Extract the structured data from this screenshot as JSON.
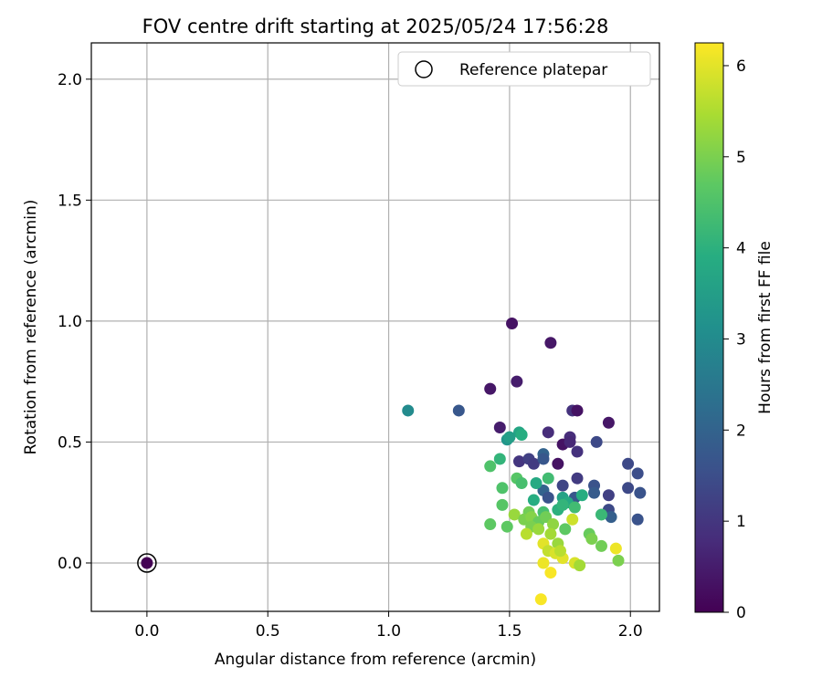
{
  "chart_data": {
    "type": "scatter",
    "title": "FOV centre drift starting at 2025/05/24 17:56:28",
    "xlabel": "Angular distance from reference (arcmin)",
    "ylabel": "Rotation from reference (arcmin)",
    "xlim": [
      -0.23,
      2.12
    ],
    "ylim": [
      -0.2,
      2.15
    ],
    "xticks": [
      0.0,
      0.5,
      1.0,
      1.5,
      2.0
    ],
    "xtick_labels": [
      "0.0",
      "0.5",
      "1.0",
      "1.5",
      "2.0"
    ],
    "yticks": [
      0.0,
      0.5,
      1.0,
      1.5,
      2.0
    ],
    "ytick_labels": [
      "0.0",
      "0.5",
      "1.0",
      "1.5",
      "2.0"
    ],
    "grid": true,
    "legend": {
      "placement": "upper right",
      "entries": [
        "Reference platepar"
      ]
    },
    "colorbar": {
      "label": "Hours from first FF file",
      "colormap": "viridis",
      "range": [
        0,
        6.25
      ],
      "ticks": [
        0,
        1,
        2,
        3,
        4,
        5,
        6
      ],
      "tick_labels": [
        "0",
        "1",
        "2",
        "3",
        "4",
        "5",
        "6"
      ]
    },
    "reference_point": {
      "x": 0.0,
      "y": 0.0,
      "c": 0.0
    },
    "points": [
      {
        "x": 1.51,
        "y": 0.99,
        "c": 0.3
      },
      {
        "x": 1.67,
        "y": 0.91,
        "c": 0.4
      },
      {
        "x": 1.53,
        "y": 0.75,
        "c": 0.5
      },
      {
        "x": 1.42,
        "y": 0.72,
        "c": 0.4
      },
      {
        "x": 1.76,
        "y": 0.63,
        "c": 0.9
      },
      {
        "x": 1.78,
        "y": 0.63,
        "c": 0.3
      },
      {
        "x": 1.91,
        "y": 0.58,
        "c": 0.4
      },
      {
        "x": 1.46,
        "y": 0.56,
        "c": 0.5
      },
      {
        "x": 1.66,
        "y": 0.54,
        "c": 0.8
      },
      {
        "x": 1.75,
        "y": 0.52,
        "c": 0.8
      },
      {
        "x": 1.72,
        "y": 0.49,
        "c": 0.3
      },
      {
        "x": 1.75,
        "y": 0.5,
        "c": 0.7
      },
      {
        "x": 1.86,
        "y": 0.5,
        "c": 1.4
      },
      {
        "x": 1.78,
        "y": 0.46,
        "c": 0.9
      },
      {
        "x": 1.54,
        "y": 0.42,
        "c": 1.0
      },
      {
        "x": 1.58,
        "y": 0.43,
        "c": 1.2
      },
      {
        "x": 1.6,
        "y": 0.41,
        "c": 1.1
      },
      {
        "x": 1.7,
        "y": 0.41,
        "c": 0.3
      },
      {
        "x": 1.64,
        "y": 0.45,
        "c": 2.0
      },
      {
        "x": 1.64,
        "y": 0.43,
        "c": 1.7
      },
      {
        "x": 1.99,
        "y": 0.41,
        "c": 1.4
      },
      {
        "x": 2.03,
        "y": 0.37,
        "c": 1.5
      },
      {
        "x": 1.78,
        "y": 0.35,
        "c": 1.1
      },
      {
        "x": 1.72,
        "y": 0.32,
        "c": 1.3
      },
      {
        "x": 1.85,
        "y": 0.32,
        "c": 1.6
      },
      {
        "x": 1.99,
        "y": 0.31,
        "c": 1.4
      },
      {
        "x": 2.04,
        "y": 0.29,
        "c": 1.6
      },
      {
        "x": 1.85,
        "y": 0.29,
        "c": 1.8
      },
      {
        "x": 1.91,
        "y": 0.28,
        "c": 1.2
      },
      {
        "x": 1.77,
        "y": 0.27,
        "c": 1.7
      },
      {
        "x": 1.64,
        "y": 0.3,
        "c": 2.0
      },
      {
        "x": 1.66,
        "y": 0.27,
        "c": 1.6
      },
      {
        "x": 1.91,
        "y": 0.22,
        "c": 1.4
      },
      {
        "x": 1.92,
        "y": 0.19,
        "c": 1.9
      },
      {
        "x": 2.03,
        "y": 0.18,
        "c": 1.6
      },
      {
        "x": 1.08,
        "y": 0.63,
        "c": 3.0
      },
      {
        "x": 1.29,
        "y": 0.63,
        "c": 1.7
      },
      {
        "x": 1.54,
        "y": 0.54,
        "c": 3.7
      },
      {
        "x": 1.49,
        "y": 0.51,
        "c": 3.3
      },
      {
        "x": 1.55,
        "y": 0.53,
        "c": 3.9
      },
      {
        "x": 1.5,
        "y": 0.52,
        "c": 3.5
      },
      {
        "x": 1.46,
        "y": 0.43,
        "c": 4.1
      },
      {
        "x": 1.42,
        "y": 0.4,
        "c": 4.5
      },
      {
        "x": 1.53,
        "y": 0.35,
        "c": 4.6
      },
      {
        "x": 1.55,
        "y": 0.33,
        "c": 4.4
      },
      {
        "x": 1.66,
        "y": 0.35,
        "c": 4.3
      },
      {
        "x": 1.61,
        "y": 0.33,
        "c": 3.8
      },
      {
        "x": 1.47,
        "y": 0.31,
        "c": 4.5
      },
      {
        "x": 1.72,
        "y": 0.27,
        "c": 3.6
      },
      {
        "x": 1.8,
        "y": 0.28,
        "c": 3.9
      },
      {
        "x": 1.74,
        "y": 0.25,
        "c": 3.8
      },
      {
        "x": 1.6,
        "y": 0.26,
        "c": 3.9
      },
      {
        "x": 1.7,
        "y": 0.22,
        "c": 4.0
      },
      {
        "x": 1.77,
        "y": 0.23,
        "c": 4.3
      },
      {
        "x": 1.72,
        "y": 0.24,
        "c": 4.1
      },
      {
        "x": 1.64,
        "y": 0.21,
        "c": 4.4
      },
      {
        "x": 1.47,
        "y": 0.24,
        "c": 4.6
      },
      {
        "x": 1.58,
        "y": 0.21,
        "c": 4.9
      },
      {
        "x": 1.52,
        "y": 0.2,
        "c": 5.3
      },
      {
        "x": 1.56,
        "y": 0.18,
        "c": 5.0
      },
      {
        "x": 1.59,
        "y": 0.19,
        "c": 5.1
      },
      {
        "x": 1.62,
        "y": 0.17,
        "c": 4.8
      },
      {
        "x": 1.65,
        "y": 0.19,
        "c": 4.9
      },
      {
        "x": 1.68,
        "y": 0.16,
        "c": 5.2
      },
      {
        "x": 1.73,
        "y": 0.14,
        "c": 4.7
      },
      {
        "x": 1.49,
        "y": 0.15,
        "c": 4.7
      },
      {
        "x": 1.42,
        "y": 0.16,
        "c": 4.7
      },
      {
        "x": 1.59,
        "y": 0.15,
        "c": 5.0
      },
      {
        "x": 1.62,
        "y": 0.14,
        "c": 5.3
      },
      {
        "x": 1.76,
        "y": 0.18,
        "c": 5.8
      },
      {
        "x": 1.67,
        "y": 0.12,
        "c": 5.4
      },
      {
        "x": 1.57,
        "y": 0.12,
        "c": 5.6
      },
      {
        "x": 1.7,
        "y": 0.08,
        "c": 5.3
      },
      {
        "x": 1.83,
        "y": 0.12,
        "c": 4.8
      },
      {
        "x": 1.84,
        "y": 0.1,
        "c": 5.0
      },
      {
        "x": 1.88,
        "y": 0.07,
        "c": 4.9
      },
      {
        "x": 1.88,
        "y": 0.2,
        "c": 4.2
      },
      {
        "x": 1.64,
        "y": 0.08,
        "c": 6.0
      },
      {
        "x": 1.66,
        "y": 0.05,
        "c": 5.7
      },
      {
        "x": 1.69,
        "y": 0.04,
        "c": 5.9
      },
      {
        "x": 1.72,
        "y": 0.02,
        "c": 6.0
      },
      {
        "x": 1.71,
        "y": 0.05,
        "c": 5.6
      },
      {
        "x": 1.77,
        "y": 0.0,
        "c": 5.9
      },
      {
        "x": 1.79,
        "y": -0.01,
        "c": 5.4
      },
      {
        "x": 1.64,
        "y": 0.0,
        "c": 6.1
      },
      {
        "x": 1.67,
        "y": -0.04,
        "c": 6.2
      },
      {
        "x": 1.94,
        "y": 0.06,
        "c": 6.1
      },
      {
        "x": 1.95,
        "y": 0.01,
        "c": 5.0
      },
      {
        "x": 1.63,
        "y": -0.15,
        "c": 6.2
      }
    ]
  }
}
